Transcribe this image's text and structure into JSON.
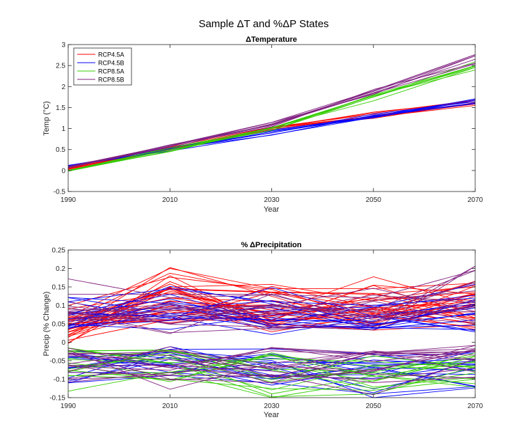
{
  "figure": {
    "title": "Sample ΔT and %ΔP States"
  },
  "chart_data": [
    {
      "type": "line",
      "title": "ΔTemperature",
      "xlabel": "Year",
      "ylabel": "Temp (°C)",
      "x": [
        1990,
        2010,
        2030,
        2050,
        2070
      ],
      "xlim": [
        1990,
        2070
      ],
      "ylim": [
        -0.5,
        3
      ],
      "xticks": [
        1990,
        2010,
        2030,
        2050,
        2070
      ],
      "yticks": [
        -0.5,
        0,
        0.5,
        1,
        1.5,
        2,
        2.5,
        3
      ],
      "grid": false,
      "legend_position": "top-left",
      "colors": {
        "RCP4.5A": "#ff0000",
        "RCP4.5B": "#0000ff",
        "RCP8.5A": "#33cc00",
        "RCP8.5B": "#7f1f7f"
      },
      "series": [
        {
          "name": "RCP4.5A",
          "color": "#ff0000",
          "values": [
            0.05,
            0.52,
            0.98,
            1.3,
            1.6
          ]
        },
        {
          "name": "RCP4.5B",
          "color": "#0000ff",
          "values": [
            0.1,
            0.5,
            0.9,
            1.3,
            1.7
          ]
        },
        {
          "name": "RCP8.5A",
          "color": "#33cc00",
          "values": [
            0.0,
            0.5,
            1.0,
            1.75,
            2.5
          ]
        },
        {
          "name": "RCP8.5B",
          "color": "#7f1f7f",
          "values": [
            0.08,
            0.58,
            1.1,
            1.85,
            2.65
          ]
        }
      ]
    },
    {
      "type": "line",
      "title": "% ΔPrecipitation",
      "xlabel": "Year",
      "ylabel": "Precip (% Change)",
      "x": [
        1990,
        2010,
        2030,
        2050,
        2070
      ],
      "xlim": [
        1990,
        2070
      ],
      "ylim": [
        -0.15,
        0.25
      ],
      "xticks": [
        1990,
        2010,
        2030,
        2050,
        2070
      ],
      "yticks": [
        -0.15,
        -0.1,
        -0.05,
        0,
        0.05,
        0.1,
        0.15,
        0.2,
        0.25
      ],
      "grid": false,
      "series": [
        {
          "name": "RCP4.5A",
          "color": "#ff0000",
          "values": [
            0.07,
            0.2,
            0.145,
            0.145,
            0.16
          ]
        },
        {
          "name": "RCP4.5A",
          "color": "#ff0000",
          "values": [
            0.06,
            0.187,
            0.135,
            0.13,
            0.15
          ]
        },
        {
          "name": "RCP4.5B",
          "color": "#0000ff",
          "values": [
            0.11,
            0.145,
            0.11,
            0.1,
            0.12
          ]
        },
        {
          "name": "RCP4.5B",
          "color": "#0000ff",
          "values": [
            -0.11,
            -0.09,
            -0.11,
            -0.14,
            -0.12
          ]
        },
        {
          "name": "RCP8.5A",
          "color": "#33cc00",
          "values": [
            -0.09,
            -0.1,
            -0.125,
            -0.13,
            -0.1
          ]
        },
        {
          "name": "RCP8.5B",
          "color": "#7f1f7f",
          "values": [
            0.13,
            0.13,
            0.13,
            0.12,
            0.195
          ]
        },
        {
          "name": "RCP8.5B",
          "color": "#7f1f7f",
          "values": [
            -0.1,
            -0.09,
            -0.09,
            -0.1,
            -0.07
          ]
        }
      ]
    }
  ]
}
